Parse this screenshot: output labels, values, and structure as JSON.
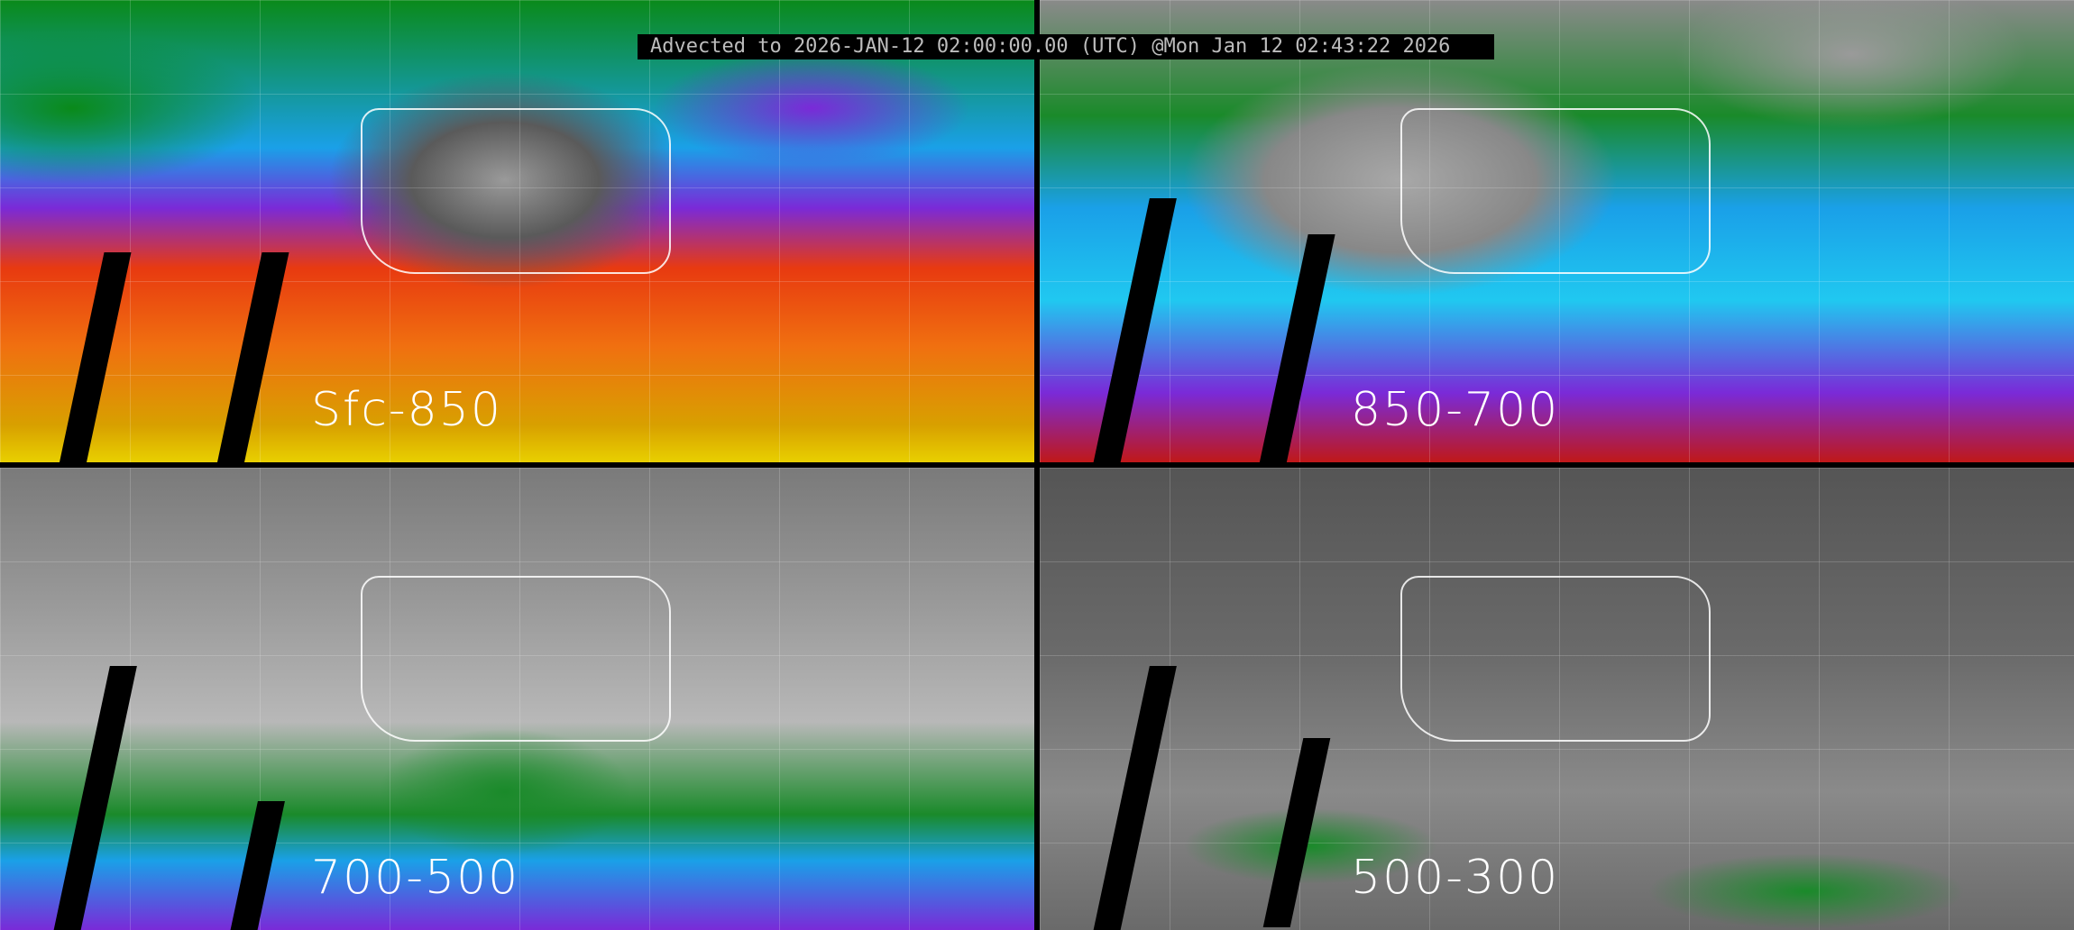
{
  "header": {
    "text": "Advected to 2026-JAN-12 02:00:00.00 (UTC) @Mon Jan 12 02:43:22 2026"
  },
  "panels": [
    {
      "label": "Sfc-850"
    },
    {
      "label": "850-700"
    },
    {
      "label": "700-500"
    },
    {
      "label": "500-300"
    }
  ]
}
